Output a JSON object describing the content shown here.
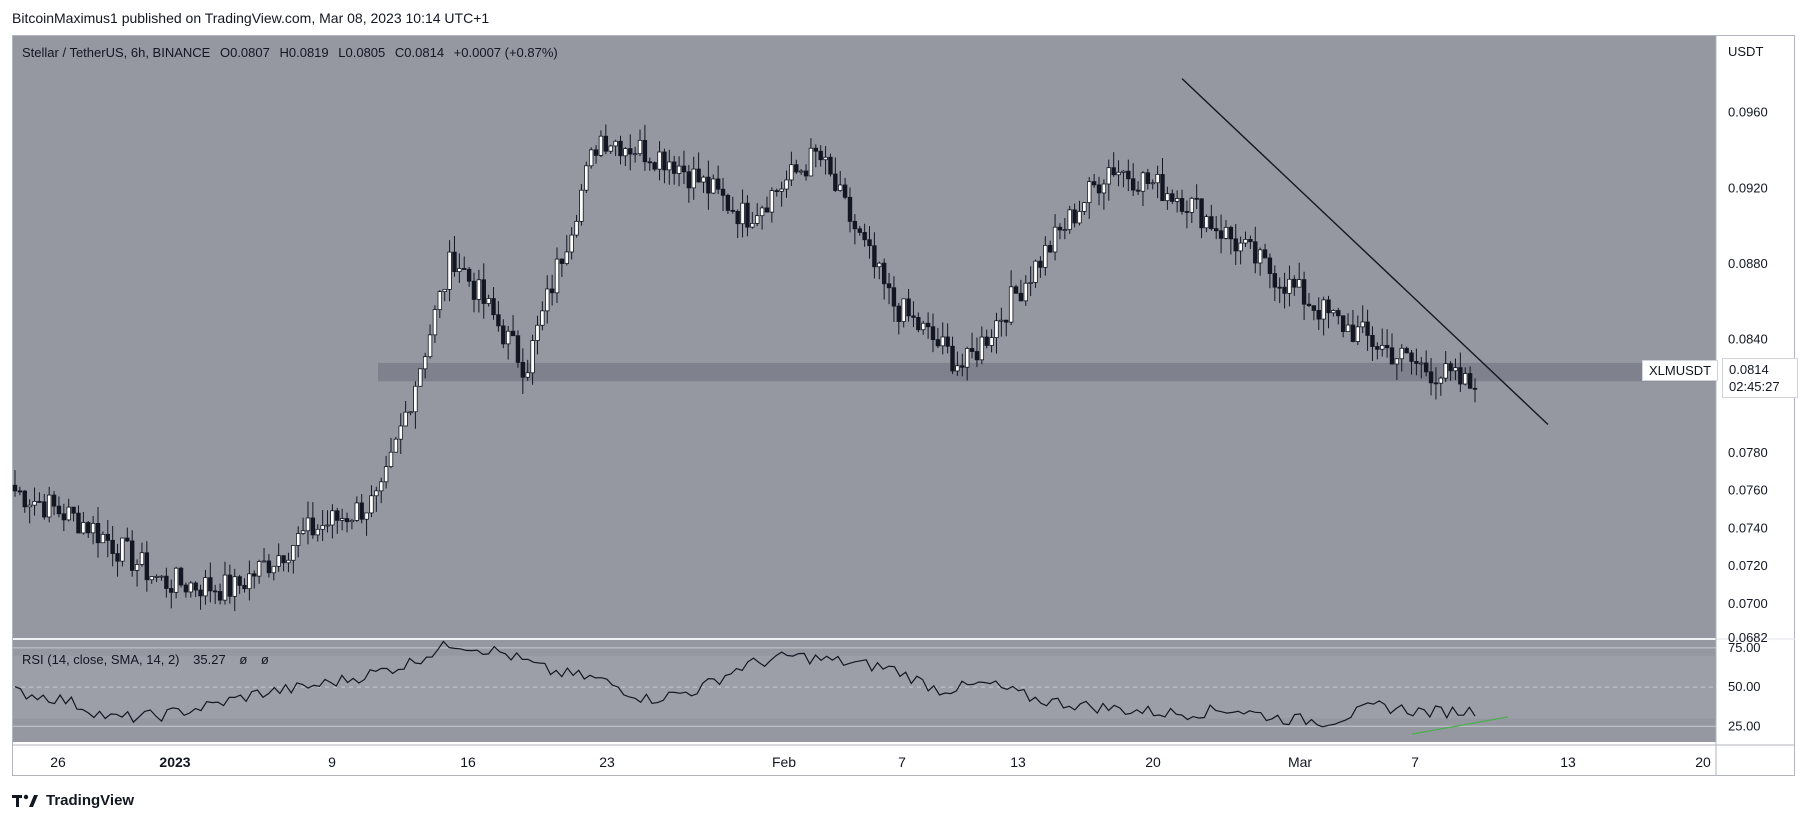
{
  "header": {
    "published": "BitcoinMaximus1 published on TradingView.com, Mar 08, 2023 10:14 UTC+1"
  },
  "legend": {
    "symbol": "Stellar / TetherUS, 6h, BINANCE",
    "o_label": "O",
    "o_value": "0.0807",
    "h_label": "H",
    "h_value": "0.0819",
    "l_label": "L",
    "l_value": "0.0805",
    "c_label": "C",
    "c_value": "0.0814",
    "change": "+0.0007 (+0.87%)"
  },
  "price_axis": {
    "unit": "USDT",
    "ticks": [
      "0.0960",
      "0.0920",
      "0.0880",
      "0.0840",
      "0.0780",
      "0.0760",
      "0.0740",
      "0.0720",
      "0.0700",
      "0.0682"
    ]
  },
  "symbol_tag": "XLMUSDT",
  "price_tag": {
    "price": "0.0814",
    "countdown": "02:45:27"
  },
  "rsi_legend": {
    "label": "RSI (14, close, SMA, 14, 2)",
    "value": "35.27",
    "extra1": "ø",
    "extra2": "ø"
  },
  "rsi_axis": {
    "ticks": [
      "75.00",
      "50.00",
      "25.00"
    ]
  },
  "time_axis": {
    "ticks": [
      "26",
      "2023",
      "9",
      "16",
      "23",
      "Feb",
      "7",
      "13",
      "20",
      "Mar",
      "7",
      "13",
      "20"
    ]
  },
  "footer": {
    "brand": "TradingView"
  },
  "colors": {
    "chart_bg": "#9598a1",
    "candle": "#131722",
    "hollow": "#ffffff",
    "support_zone": "#787b86",
    "trendline": "#131722",
    "rsi_divergence": "#4caf50"
  },
  "chart_data": {
    "type": "line",
    "series": [
      {
        "x": [
          "Dec 24",
          "Dec 26",
          "Dec 30",
          "Jan 1",
          "Jan 4",
          "Jan 9",
          "Jan 13",
          "Jan 18",
          "Jan 23",
          "Jan 30",
          "Feb 1",
          "Feb 7",
          "Feb 10",
          "Feb 13",
          "Feb 16",
          "Feb 20",
          "Feb 22",
          "Feb 27",
          "Mar 3",
          "Mar 7",
          "Mar 8"
        ],
        "values": [
          0.076,
          0.0742,
          0.0712,
          0.0708,
          0.0738,
          0.0755,
          0.0885,
          0.0825,
          0.0948,
          0.0935,
          0.0905,
          0.0938,
          0.086,
          0.0825,
          0.088,
          0.0932,
          0.0915,
          0.0882,
          0.0852,
          0.083,
          0.0814
        ]
      }
    ],
    "ylim": [
      0.0682,
      0.099
    ],
    "support_zone": [
      0.0821,
      0.0826
    ],
    "trendline": {
      "from": [
        "Feb 21",
        0.0978
      ],
      "to": [
        "Mar 12",
        0.0795
      ]
    },
    "rsi": {
      "ylim": [
        15,
        80
      ],
      "levels": [
        75,
        50,
        25
      ],
      "values": [
        47,
        42,
        30,
        32,
        38,
        46,
        50,
        56,
        64,
        78,
        72,
        60,
        55,
        42,
        48,
        64,
        70,
        66,
        62,
        48,
        52,
        42,
        38,
        35,
        33,
        36,
        30,
        28,
        38,
        34,
        35
      ],
      "divergence": {
        "from": [
          "Mar 5",
          20
        ],
        "to": [
          "Mar 9",
          31
        ]
      }
    }
  }
}
